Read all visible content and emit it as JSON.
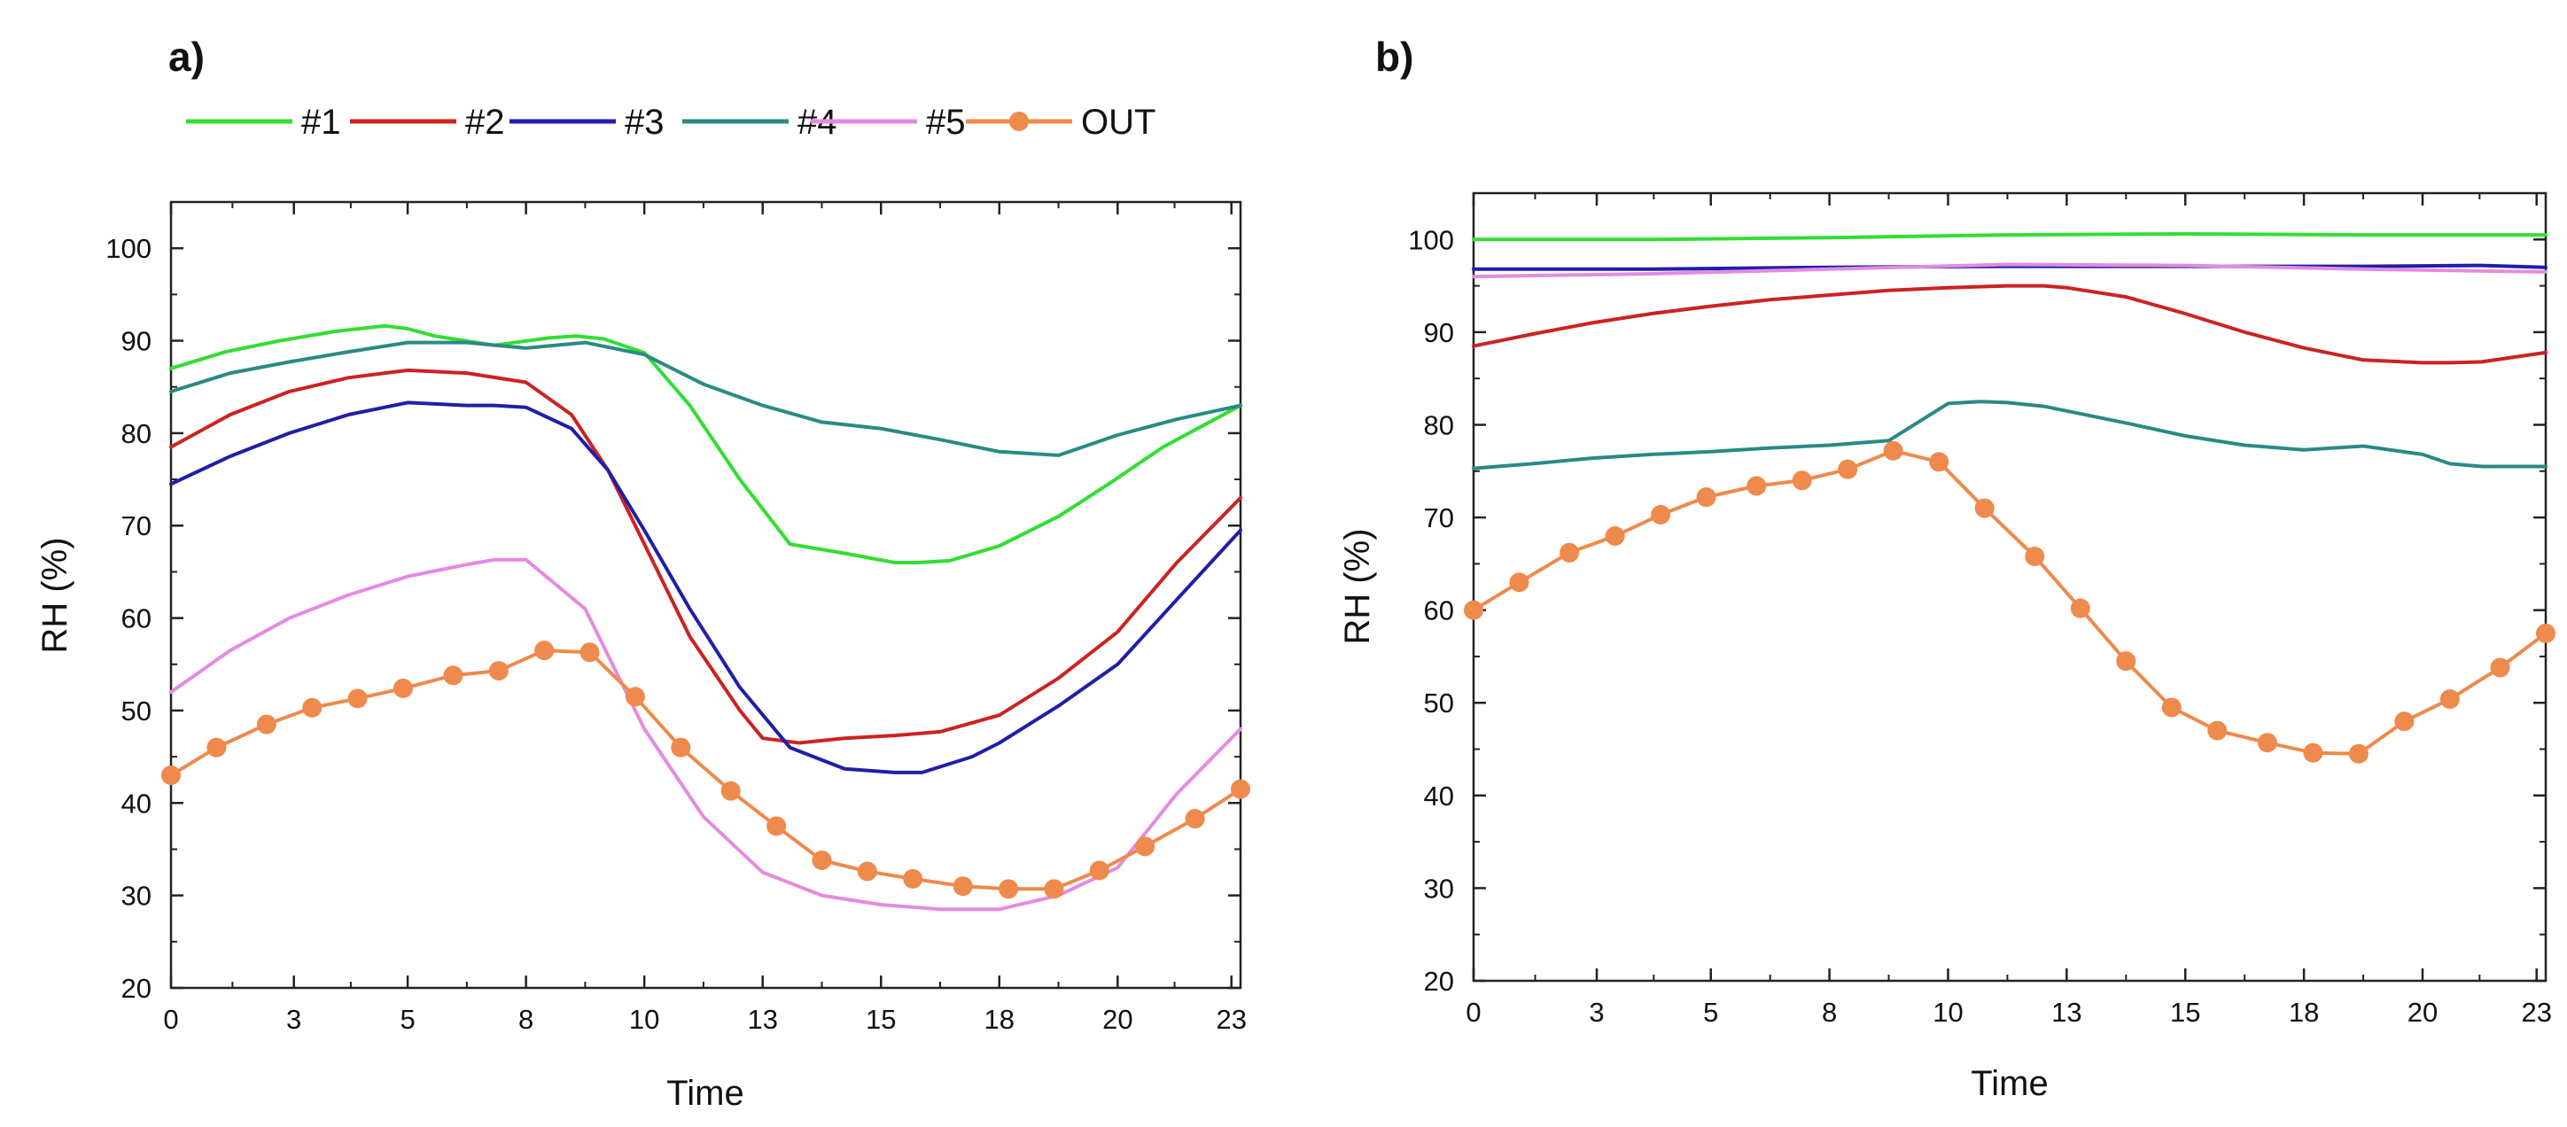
{
  "legend": [
    {
      "name": "#1",
      "color": "#33dd33",
      "marker": false
    },
    {
      "name": "#2",
      "color": "#cc2222",
      "marker": false
    },
    {
      "name": "#3",
      "color": "#1f1fa8",
      "marker": false
    },
    {
      "name": "#4",
      "color": "#2a8a84",
      "marker": false
    },
    {
      "name": "#5",
      "color": "#e48be0",
      "marker": false
    },
    {
      "name": "OUT",
      "color": "#ee8a4c",
      "marker": true
    }
  ],
  "chart_data": [
    {
      "panel_label": "a)",
      "type": "line",
      "xlabel": "Time",
      "ylabel": "RH (%)",
      "xlim": [
        0,
        23.5
      ],
      "ylim": [
        20,
        105
      ],
      "x_tick_values": [
        0,
        2.7,
        5.2,
        7.8,
        10.4,
        13.0,
        15.6,
        18.2,
        20.8,
        23.3
      ],
      "x_tick_labels": [
        "0",
        "3",
        "5",
        "8",
        "10",
        "13",
        "15",
        "18",
        "20",
        "23"
      ],
      "y_ticks": [
        20,
        30,
        40,
        50,
        60,
        70,
        80,
        90,
        100
      ],
      "series": [
        {
          "name": "#1",
          "color": "#33dd33",
          "x": [
            0,
            1.2,
            2.4,
            3.6,
            4.7,
            5.2,
            5.8,
            7.1,
            8.3,
            8.9,
            9.5,
            10.4,
            11.4,
            12.5,
            13.6,
            14.8,
            15.9,
            16.4,
            17.1,
            18.2,
            19.5,
            20.6,
            21.8,
            23.5
          ],
          "y": [
            87,
            88.8,
            90,
            91,
            91.6,
            91.3,
            90.5,
            89.5,
            90.3,
            90.5,
            90.2,
            88.7,
            83,
            75,
            68,
            67,
            66,
            66,
            66.2,
            67.8,
            71,
            74.5,
            78.5,
            83
          ]
        },
        {
          "name": "#2",
          "color": "#cc2222",
          "x": [
            0,
            1.3,
            2.6,
            3.9,
            5.2,
            6.5,
            7.8,
            8.8,
            9.6,
            10.4,
            11.4,
            12.5,
            13.0,
            13.8,
            14.8,
            15.9,
            16.9,
            18.2,
            19.5,
            20.8,
            22.1,
            23.5
          ],
          "y": [
            78.5,
            82,
            84.5,
            86,
            86.8,
            86.5,
            85.5,
            82,
            76,
            68,
            58,
            50,
            47,
            46.5,
            47,
            47.3,
            47.7,
            49.5,
            53.5,
            58.5,
            66,
            73
          ]
        },
        {
          "name": "#3",
          "color": "#1f1fa8",
          "x": [
            0,
            1.3,
            2.6,
            3.9,
            5.2,
            6.5,
            7.1,
            7.8,
            8.8,
            9.6,
            10.4,
            11.4,
            12.5,
            13.6,
            14.8,
            15.9,
            16.5,
            17.6,
            18.2,
            19.5,
            20.8,
            22.1,
            23.5
          ],
          "y": [
            74.5,
            77.5,
            80,
            82,
            83.3,
            83,
            83,
            82.8,
            80.5,
            76,
            69.5,
            61,
            52.5,
            46,
            43.7,
            43.3,
            43.3,
            45,
            46.5,
            50.5,
            55,
            62,
            69.5
          ]
        },
        {
          "name": "#4",
          "color": "#2a8a84",
          "x": [
            0,
            1.3,
            2.6,
            3.9,
            5.2,
            6.5,
            7.8,
            9.1,
            10.4,
            11.7,
            13.0,
            14.3,
            15.6,
            16.9,
            18.2,
            19.5,
            20.8,
            22.1,
            23.5
          ],
          "y": [
            84.5,
            86.5,
            87.7,
            88.8,
            89.8,
            89.8,
            89.2,
            89.8,
            88.5,
            85.3,
            83,
            81.2,
            80.5,
            79.3,
            78,
            77.6,
            79.8,
            81.5,
            83
          ]
        },
        {
          "name": "#5",
          "color": "#e48be0",
          "x": [
            0,
            1.3,
            2.6,
            3.9,
            5.2,
            6.5,
            7.1,
            7.8,
            9.1,
            10.4,
            11.7,
            13.0,
            14.3,
            15.6,
            16.9,
            18.2,
            19.5,
            20.8,
            22.1,
            23.5
          ],
          "y": [
            52,
            56.5,
            60,
            62.5,
            64.5,
            65.8,
            66.3,
            66.3,
            61,
            48,
            38.5,
            32.5,
            30,
            29,
            28.5,
            28.5,
            30,
            33,
            41,
            48
          ]
        },
        {
          "name": "OUT",
          "color": "#ee8a4c",
          "marker": true,
          "x": [
            0,
            1.0,
            2.1,
            3.1,
            4.1,
            5.1,
            6.2,
            7.2,
            8.2,
            9.2,
            10.2,
            11.2,
            12.3,
            13.3,
            14.3,
            15.3,
            16.3,
            17.4,
            18.4,
            19.4,
            20.4,
            21.4,
            22.5,
            23.5
          ],
          "y": [
            43,
            46,
            48.5,
            50.3,
            51.3,
            52.4,
            53.8,
            54.3,
            56.5,
            56.3,
            51.5,
            46,
            41.3,
            37.5,
            33.8,
            32.6,
            31.8,
            31,
            30.7,
            30.7,
            32.7,
            35.3,
            38.3,
            41.5
          ]
        }
      ]
    },
    {
      "panel_label": "b)",
      "type": "line",
      "xlabel": "Time",
      "ylabel": "RH (%)",
      "xlim": [
        0,
        23.5
      ],
      "ylim": [
        20,
        105
      ],
      "x_tick_values": [
        0,
        2.7,
        5.2,
        7.8,
        10.4,
        13.0,
        15.6,
        18.2,
        20.8,
        23.3
      ],
      "x_tick_labels": [
        "0",
        "3",
        "5",
        "8",
        "10",
        "13",
        "15",
        "18",
        "20",
        "23"
      ],
      "y_ticks": [
        20,
        30,
        40,
        50,
        60,
        70,
        80,
        90,
        100
      ],
      "series": [
        {
          "name": "#1",
          "color": "#33dd33",
          "x": [
            0,
            3.9,
            7.8,
            11.7,
            15.6,
            19.5,
            23.5
          ],
          "y": [
            100,
            100,
            100.2,
            100.5,
            100.6,
            100.5,
            100.5
          ]
        },
        {
          "name": "#3",
          "color": "#1f1fa8",
          "x": [
            0,
            3.9,
            7.8,
            11.7,
            15.6,
            19.5,
            22.1,
            23.5
          ],
          "y": [
            96.8,
            96.8,
            97,
            97.1,
            97.1,
            97.1,
            97.2,
            97
          ]
        },
        {
          "name": "#5",
          "color": "#e48be0",
          "x": [
            0,
            3.9,
            7.8,
            11.7,
            15.6,
            19.5,
            23.5
          ],
          "y": [
            96,
            96.3,
            96.8,
            97.3,
            97.2,
            96.8,
            96.5
          ]
        },
        {
          "name": "#2",
          "color": "#cc2222",
          "x": [
            0,
            1.3,
            2.6,
            3.9,
            5.2,
            6.5,
            7.8,
            9.1,
            10.4,
            11.7,
            12.5,
            13.0,
            14.3,
            15.6,
            16.9,
            18.2,
            19.5,
            20.8,
            21.4,
            22.1,
            23.5
          ],
          "y": [
            88.5,
            89.8,
            91,
            92,
            92.8,
            93.5,
            94,
            94.5,
            94.8,
            95,
            95,
            94.8,
            93.8,
            92,
            90,
            88.3,
            87,
            86.7,
            86.7,
            86.8,
            87.8
          ]
        },
        {
          "name": "#4",
          "color": "#2a8a84",
          "x": [
            0,
            1.3,
            2.6,
            3.9,
            5.2,
            6.5,
            7.8,
            9.1,
            10.4,
            11.1,
            11.7,
            12.5,
            13.0,
            14.3,
            15.6,
            16.9,
            18.2,
            19.5,
            20.8,
            21.4,
            22.1,
            23.5
          ],
          "y": [
            75.3,
            75.8,
            76.4,
            76.8,
            77.1,
            77.5,
            77.8,
            78.3,
            82.3,
            82.5,
            82.4,
            82,
            81.5,
            80.2,
            78.8,
            77.8,
            77.3,
            77.7,
            76.8,
            75.8,
            75.5,
            75.5
          ]
        },
        {
          "name": "OUT",
          "color": "#ee8a4c",
          "marker": true,
          "x": [
            0,
            1.0,
            2.1,
            3.1,
            4.1,
            5.1,
            6.2,
            7.2,
            8.2,
            9.2,
            10.2,
            11.2,
            12.3,
            13.3,
            14.3,
            15.3,
            16.3,
            17.4,
            18.4,
            19.4,
            20.4,
            21.4,
            22.5,
            23.5
          ],
          "y": [
            60,
            63,
            66.2,
            68,
            70.3,
            72.2,
            73.4,
            74,
            75.2,
            77.2,
            76,
            71,
            65.8,
            60.2,
            54.5,
            49.5,
            47,
            45.7,
            44.6,
            44.5,
            48,
            50.4,
            53.8,
            57.5
          ]
        }
      ]
    }
  ]
}
